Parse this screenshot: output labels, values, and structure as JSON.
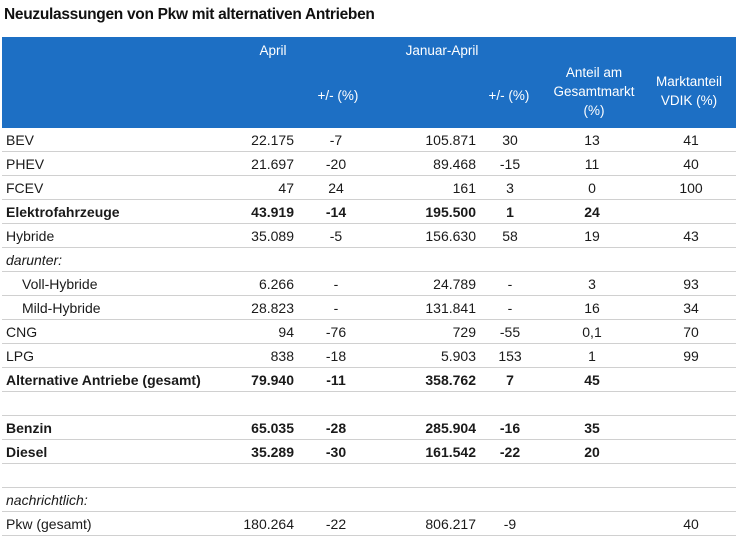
{
  "title": "Neuzulassungen von Pkw mit alternativen Antrieben",
  "header": {
    "april": "April",
    "januar_april": "Januar-April",
    "change1": "+/- (%)",
    "change2": "+/- (%)",
    "share_line1": "Anteil am",
    "share_line2": "Gesamtmarkt",
    "share_line3": "(%)",
    "vdik_line1": "Marktanteil",
    "vdik_line2": "VDIK (%)"
  },
  "rows": [
    {
      "label": "BEV",
      "april": "22.175",
      "chg1": "-7",
      "jan_apr": "105.871",
      "chg2": "30",
      "share": "13",
      "vdik": "41"
    },
    {
      "label": "PHEV",
      "april": "21.697",
      "chg1": "-20",
      "jan_apr": "89.468",
      "chg2": "-15",
      "share": "11",
      "vdik": "40"
    },
    {
      "label": "FCEV",
      "april": "47",
      "chg1": "24",
      "jan_apr": "161",
      "chg2": "3",
      "share": "0",
      "vdik": "100"
    },
    {
      "label": "Elektrofahrzeuge",
      "april": "43.919",
      "chg1": "-14",
      "jan_apr": "195.500",
      "chg2": "1",
      "share": "24",
      "vdik": ""
    },
    {
      "label": "Hybride",
      "april": "35.089",
      "chg1": "-5",
      "jan_apr": "156.630",
      "chg2": "58",
      "share": "19",
      "vdik": "43"
    },
    {
      "label": "darunter:",
      "april": "",
      "chg1": "",
      "jan_apr": "",
      "chg2": "",
      "share": "",
      "vdik": ""
    },
    {
      "label": "Voll-Hybride",
      "april": "6.266",
      "chg1": "-",
      "jan_apr": "24.789",
      "chg2": "-",
      "share": "3",
      "vdik": "93"
    },
    {
      "label": "Mild-Hybride",
      "april": "28.823",
      "chg1": "-",
      "jan_apr": "131.841",
      "chg2": "-",
      "share": "16",
      "vdik": "34"
    },
    {
      "label": "CNG",
      "april": "94",
      "chg1": "-76",
      "jan_apr": "729",
      "chg2": "-55",
      "share": "0,1",
      "vdik": "70"
    },
    {
      "label": "LPG",
      "april": "838",
      "chg1": "-18",
      "jan_apr": "5.903",
      "chg2": "153",
      "share": "1",
      "vdik": "99"
    },
    {
      "label": "Alternative Antriebe (gesamt)",
      "april": "79.940",
      "chg1": "-11",
      "jan_apr": "358.762",
      "chg2": "7",
      "share": "45",
      "vdik": ""
    },
    {
      "label": "Benzin",
      "april": "65.035",
      "chg1": "-28",
      "jan_apr": "285.904",
      "chg2": "-16",
      "share": "35",
      "vdik": ""
    },
    {
      "label": "Diesel",
      "april": "35.289",
      "chg1": "-30",
      "jan_apr": "161.542",
      "chg2": "-22",
      "share": "20",
      "vdik": ""
    },
    {
      "label": "nachrichtlich:",
      "april": "",
      "chg1": "",
      "jan_apr": "",
      "chg2": "",
      "share": "",
      "vdik": ""
    },
    {
      "label": "Pkw (gesamt)",
      "april": "180.264",
      "chg1": "-22",
      "jan_apr": "806.217",
      "chg2": "-9",
      "share": "",
      "vdik": "40"
    }
  ]
}
